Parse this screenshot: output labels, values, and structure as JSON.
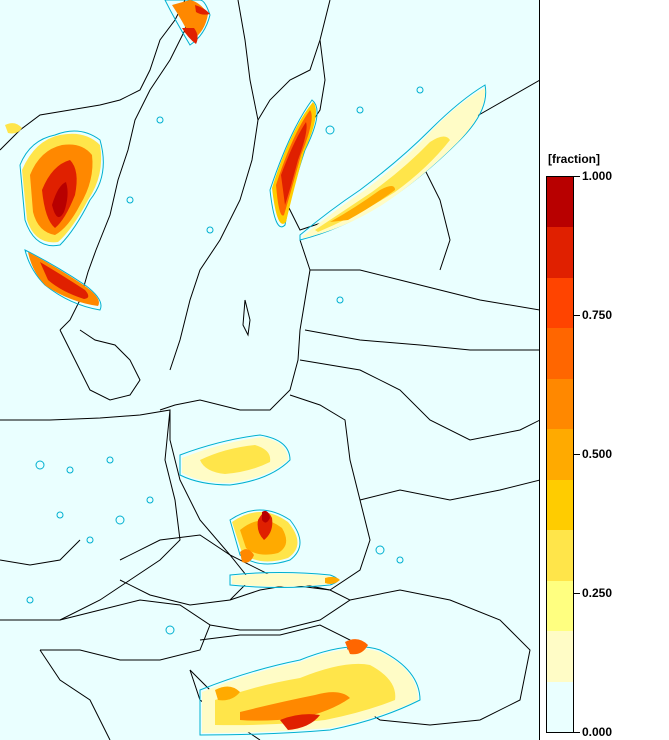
{
  "legend": {
    "title": "[fraction]",
    "ticks": [
      {
        "label": "1.000",
        "value": 1.0
      },
      {
        "label": "0.750",
        "value": 0.75
      },
      {
        "label": "0.500",
        "value": 0.5
      },
      {
        "label": "0.250",
        "value": 0.25
      },
      {
        "label": "0.000",
        "value": 0.0
      }
    ],
    "bins": [
      "#eaffff",
      "#fffcc6",
      "#ffff80",
      "#ffe54a",
      "#ffcc00",
      "#ffaa00",
      "#ff8800",
      "#ff6600",
      "#ff4400",
      "#e02000",
      "#b80000"
    ]
  },
  "colors": {
    "ocean": "#eaffff",
    "border": "#000000",
    "contour": "#00b0d0"
  }
}
